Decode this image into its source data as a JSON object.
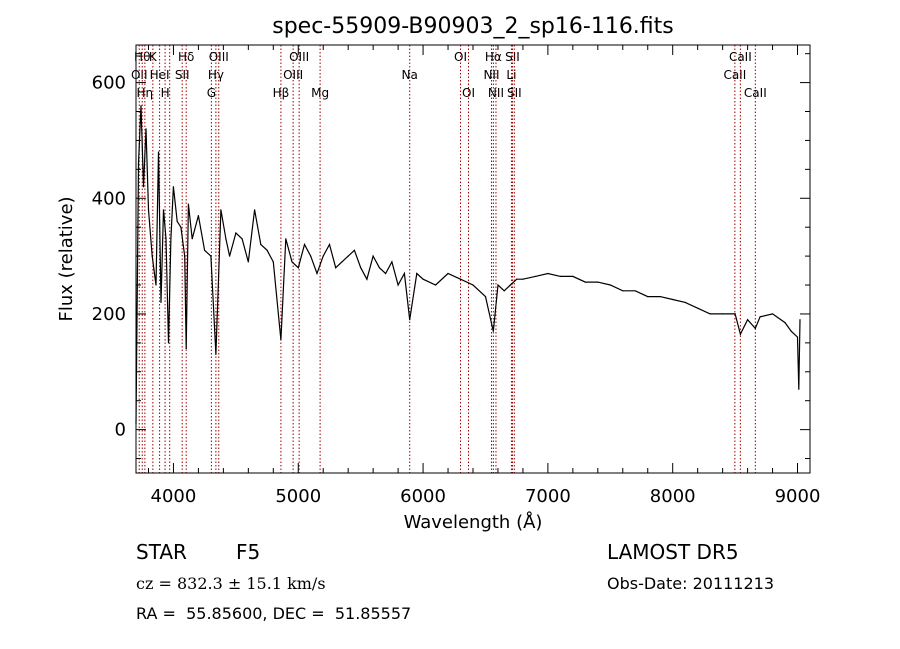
{
  "chart_data": {
    "type": "line",
    "title": "spec-55909-B90903_2_sp16-116.fits",
    "xlabel": "Wavelength (Å)",
    "ylabel": "Flux (relative)",
    "xlim": [
      3700,
      9100
    ],
    "ylim": [
      -75,
      665
    ],
    "xticks": [
      4000,
      5000,
      6000,
      7000,
      8000,
      9000
    ],
    "yticks": [
      0,
      200,
      400,
      600
    ],
    "grid": false,
    "line_color": "#000000",
    "marker_color": "#a00000",
    "series": [
      {
        "x": [
          3700,
          3720,
          3740,
          3760,
          3780,
          3800,
          3830,
          3860,
          3880,
          3900,
          3920,
          3940,
          3960,
          3980,
          4000,
          4030,
          4060,
          4090,
          4102,
          4120,
          4150,
          4200,
          4250,
          4300,
          4340,
          4380,
          4420,
          4450,
          4500,
          4550,
          4600,
          4650,
          4700,
          4750,
          4800,
          4861,
          4900,
          4950,
          5000,
          5050,
          5100,
          5150,
          5200,
          5250,
          5300,
          5350,
          5400,
          5450,
          5500,
          5550,
          5600,
          5650,
          5700,
          5750,
          5800,
          5850,
          5893,
          5950,
          6000,
          6100,
          6200,
          6300,
          6400,
          6500,
          6563,
          6600,
          6650,
          6700,
          6750,
          6800,
          6900,
          7000,
          7100,
          7200,
          7300,
          7400,
          7500,
          7600,
          7700,
          7800,
          7900,
          8000,
          8100,
          8200,
          8300,
          8400,
          8500,
          8542,
          8600,
          8662,
          8700,
          8800,
          8900,
          8950,
          9000,
          9010,
          9020
        ],
        "values": [
          10,
          460,
          560,
          420,
          520,
          380,
          300,
          250,
          480,
          220,
          380,
          330,
          150,
          330,
          420,
          360,
          350,
          300,
          140,
          390,
          330,
          370,
          310,
          300,
          130,
          380,
          330,
          300,
          340,
          330,
          290,
          380,
          320,
          310,
          290,
          155,
          330,
          290,
          280,
          320,
          300,
          270,
          300,
          320,
          280,
          290,
          300,
          310,
          280,
          260,
          300,
          280,
          270,
          290,
          250,
          270,
          190,
          270,
          260,
          250,
          270,
          260,
          250,
          230,
          170,
          250,
          240,
          250,
          260,
          260,
          265,
          270,
          265,
          265,
          255,
          255,
          250,
          240,
          240,
          230,
          230,
          225,
          220,
          210,
          200,
          200,
          200,
          165,
          190,
          175,
          195,
          200,
          185,
          170,
          160,
          70,
          190
        ]
      }
    ],
    "lines": [
      {
        "wl": 3726,
        "label": "OII",
        "row": 1
      },
      {
        "wl": 3750,
        "label": "Hθ",
        "row": 0
      },
      {
        "wl": 3771,
        "label": "Hη",
        "row": 2
      },
      {
        "wl": 3835,
        "label": "K",
        "row": 0
      },
      {
        "wl": 3889,
        "label": "HeI",
        "row": 1
      },
      {
        "wl": 3933,
        "label": "H",
        "row": 2
      },
      {
        "wl": 3970,
        "label": "",
        "row": 2
      },
      {
        "wl": 4070,
        "label": "SII",
        "row": 1
      },
      {
        "wl": 4102,
        "label": "Hδ",
        "row": 0
      },
      {
        "wl": 4304,
        "label": "G",
        "row": 2
      },
      {
        "wl": 4340,
        "label": "Hγ",
        "row": 1
      },
      {
        "wl": 4363,
        "label": "OIII",
        "row": 0
      },
      {
        "wl": 4861,
        "label": "Hβ",
        "row": 2
      },
      {
        "wl": 4959,
        "label": "OIII",
        "row": 1
      },
      {
        "wl": 5007,
        "label": "OIII",
        "row": 0
      },
      {
        "wl": 5175,
        "label": "Mg",
        "row": 2
      },
      {
        "wl": 5893,
        "label": "Na",
        "row": 1
      },
      {
        "wl": 6300,
        "label": "OI",
        "row": 0
      },
      {
        "wl": 6364,
        "label": "OI",
        "row": 2
      },
      {
        "wl": 6548,
        "label": "NII",
        "row": 1
      },
      {
        "wl": 6563,
        "label": "Hα",
        "row": 0
      },
      {
        "wl": 6584,
        "label": "NII",
        "row": 2
      },
      {
        "wl": 6708,
        "label": "Li",
        "row": 1
      },
      {
        "wl": 6716,
        "label": "SII",
        "row": 0
      },
      {
        "wl": 6731,
        "label": "SII",
        "row": 2
      },
      {
        "wl": 8498,
        "label": "CaII",
        "row": 1
      },
      {
        "wl": 8542,
        "label": "CaII",
        "row": 0
      },
      {
        "wl": 8662,
        "label": "CaII",
        "row": 2
      }
    ]
  },
  "info": {
    "classification": "STAR",
    "subclass": "F5",
    "survey": "LAMOST DR5",
    "redshift": "cz = 832.3 ± 15.1 km/s",
    "obs_date": "Obs-Date: 20111213",
    "coords": "RA =  55.85600, DEC =  51.85557"
  }
}
